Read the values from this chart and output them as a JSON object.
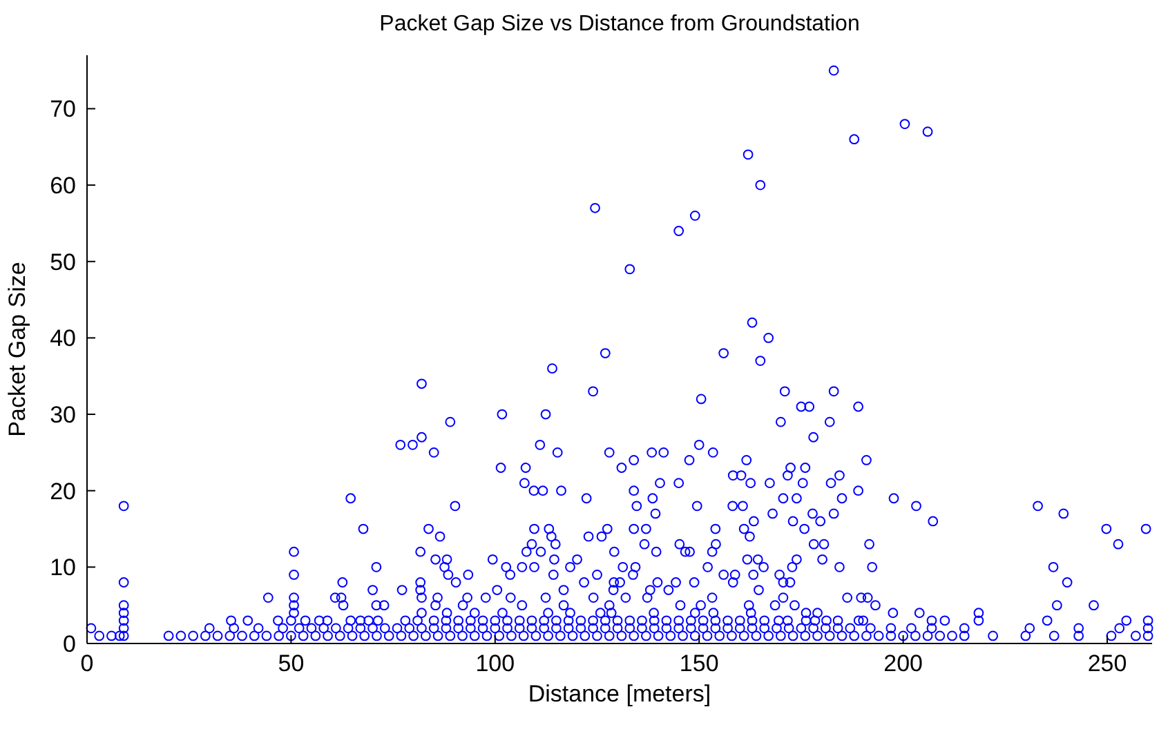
{
  "chart_data": {
    "type": "scatter",
    "title": "Packet Gap Size vs Distance from Groundstation",
    "xlabel": "Distance [meters]",
    "ylabel": "Packet Gap Size",
    "xlim": [
      0,
      261
    ],
    "ylim": [
      0,
      77
    ],
    "xticks": [
      0,
      50,
      100,
      150,
      200,
      250
    ],
    "yticks": [
      0,
      10,
      20,
      30,
      40,
      50,
      60,
      70
    ],
    "marker": "circle",
    "series": [
      {
        "color": "#0000ff",
        "x": [
          183
        ],
        "values": [
          75
        ]
      },
      {
        "color": "#0000ff",
        "x": [
          200.4
        ],
        "values": [
          68
        ]
      },
      {
        "color": "#0000ff",
        "x": [
          206
        ],
        "values": [
          67
        ]
      },
      {
        "color": "#0000ff",
        "x": [
          188
        ],
        "values": [
          66
        ]
      },
      {
        "color": "#0000ff",
        "x": [
          162
        ],
        "values": [
          64
        ]
      },
      {
        "color": "#0000ff",
        "x": [
          165
        ],
        "values": [
          60
        ]
      },
      {
        "color": "#0000ff",
        "x": [
          124.5
        ],
        "values": [
          57
        ]
      },
      {
        "color": "#0000ff",
        "x": [
          149
        ],
        "values": [
          56
        ]
      },
      {
        "color": "#0000ff",
        "x": [
          145
        ],
        "values": [
          54
        ]
      },
      {
        "color": "#0000ff",
        "x": [
          133
        ],
        "values": [
          49
        ]
      },
      {
        "color": "#0000ff",
        "x": [
          163
        ],
        "values": [
          42
        ]
      },
      {
        "color": "#0000ff",
        "x": [
          167
        ],
        "values": [
          40
        ]
      },
      {
        "color": "#0000ff",
        "x": [
          127,
          156
        ],
        "values": [
          38,
          38
        ]
      },
      {
        "color": "#0000ff",
        "x": [
          165
        ],
        "values": [
          37
        ]
      },
      {
        "color": "#0000ff",
        "x": [
          114
        ],
        "values": [
          36
        ]
      },
      {
        "color": "#0000ff",
        "x": [
          82
        ],
        "values": [
          34
        ]
      },
      {
        "color": "#0000ff",
        "x": [
          124,
          171,
          183
        ],
        "values": [
          33,
          33,
          33
        ]
      },
      {
        "color": "#0000ff",
        "x": [
          150.5
        ],
        "values": [
          32
        ]
      },
      {
        "color": "#0000ff",
        "x": [
          175,
          177,
          189
        ],
        "values": [
          31,
          31,
          31
        ]
      },
      {
        "color": "#0000ff",
        "x": [
          101.7,
          112.4
        ],
        "values": [
          30,
          30
        ]
      },
      {
        "color": "#0000ff",
        "x": [
          89,
          170,
          182
        ],
        "values": [
          29,
          29,
          29
        ]
      },
      {
        "color": "#0000ff",
        "x": [
          82,
          178
        ],
        "values": [
          27,
          27
        ]
      },
      {
        "color": "#0000ff",
        "x": [
          76.8,
          79.8,
          111,
          150
        ],
        "values": [
          26,
          26,
          26,
          26
        ]
      },
      {
        "color": "#0000ff",
        "x": [
          85,
          115.3,
          128,
          138.4,
          141.3,
          153.4
        ],
        "values": [
          25,
          25,
          25,
          25,
          25,
          25
        ]
      },
      {
        "color": "#0000ff",
        "x": [
          134,
          147.6,
          161.6,
          191
        ],
        "values": [
          24,
          24,
          24,
          24
        ]
      },
      {
        "color": "#0000ff",
        "x": [
          101.4,
          107.5,
          131,
          172.4,
          176
        ],
        "values": [
          23,
          23,
          23,
          23,
          23
        ]
      },
      {
        "color": "#0000ff",
        "x": [
          158.3,
          160.3,
          171.7,
          184.4
        ],
        "values": [
          22,
          22,
          22,
          22
        ]
      },
      {
        "color": "#0000ff",
        "x": [
          107.2,
          140.4,
          145,
          162.6,
          167.3,
          175.4,
          182.3
        ],
        "values": [
          21,
          21,
          21,
          21,
          21,
          21,
          21
        ]
      },
      {
        "color": "#0000ff",
        "x": [
          109.5,
          111.7,
          116.2,
          134,
          189
        ],
        "values": [
          20,
          20,
          20,
          20,
          20
        ]
      },
      {
        "color": "#0000ff",
        "x": [
          64.6,
          122.4,
          138.6,
          170.6,
          173.9,
          185,
          197.7
        ],
        "values": [
          19,
          19,
          19,
          19,
          19,
          19,
          19
        ]
      },
      {
        "color": "#0000ff",
        "x": [
          9,
          90.2,
          134.7,
          149.5,
          158.2,
          160.7,
          203.2,
          233
        ],
        "values": [
          18,
          18,
          18,
          18,
          18,
          18,
          18,
          18
        ]
      },
      {
        "color": "#0000ff",
        "x": [
          139.3,
          168,
          177.8,
          183,
          239.3
        ],
        "values": [
          17,
          17,
          17,
          17,
          17
        ]
      },
      {
        "color": "#0000ff",
        "x": [
          163.4,
          173,
          179.7,
          207.3
        ],
        "values": [
          16,
          16,
          16,
          16
        ]
      },
      {
        "color": "#0000ff",
        "x": [
          67.7,
          83.7,
          109.6,
          113.2,
          127.5,
          134,
          137,
          154,
          161,
          175.8,
          249.8,
          259.5
        ],
        "values": [
          15,
          15,
          15,
          15,
          15,
          15,
          15,
          15,
          15,
          15,
          15,
          15
        ]
      },
      {
        "color": "#0000ff",
        "x": [
          86.5,
          113.8,
          122.9,
          126.1,
          162.4
        ],
        "values": [
          14,
          14,
          14,
          14,
          14
        ]
      },
      {
        "color": "#0000ff",
        "x": [
          109,
          114.8,
          136.6,
          145.2,
          154.1,
          178.1,
          180.6,
          191.7,
          252.7
        ],
        "values": [
          13,
          13,
          13,
          13,
          13,
          13,
          13,
          13,
          13
        ]
      },
      {
        "color": "#0000ff",
        "x": [
          50.7,
          81.7,
          107.7,
          111.2,
          129.2,
          139.5,
          146.6,
          147.7,
          153.2
        ],
        "values": [
          12,
          12,
          12,
          12,
          12,
          12,
          12,
          12,
          12
        ]
      },
      {
        "color": "#0000ff",
        "x": [
          85.4,
          88.2,
          99.4,
          114.5,
          120.1,
          161.8,
          164.4,
          173.9,
          180.2
        ],
        "values": [
          11,
          11,
          11,
          11,
          11,
          11,
          11,
          11,
          11
        ]
      },
      {
        "color": "#0000ff",
        "x": [
          70.9,
          87.6,
          102.7,
          106.6,
          109.6,
          118.4,
          131.3,
          134.4,
          152.1,
          165.8,
          172.8,
          184.4,
          192.4,
          236.8
        ],
        "values": [
          10,
          10,
          10,
          10,
          10,
          10,
          10,
          10,
          10,
          10,
          10,
          10,
          10,
          10
        ]
      },
      {
        "color": "#0000ff",
        "x": [
          50.7,
          88.5,
          93.4,
          103.7,
          114.3,
          125,
          133.8,
          156,
          158.8,
          163.3,
          169.7
        ],
        "values": [
          9,
          9,
          9,
          9,
          9,
          9,
          9,
          9,
          9,
          9,
          9
        ]
      },
      {
        "color": "#0000ff",
        "x": [
          9,
          62.6,
          81.7,
          90.4,
          121.8,
          129.1,
          130.6,
          139.8,
          144.3,
          148.8,
          158.3,
          170.6,
          172.3,
          240.2
        ],
        "values": [
          8,
          8,
          8,
          8,
          8,
          8,
          8,
          8,
          8,
          8,
          8,
          8,
          8,
          8
        ]
      },
      {
        "color": "#0000ff",
        "x": [
          70,
          77.2,
          81.7,
          100.5,
          116.8,
          129,
          138,
          142.5,
          164.6
        ],
        "values": [
          7,
          7,
          7,
          7,
          7,
          7,
          7,
          7,
          7
        ]
      },
      {
        "color": "#0000ff",
        "x": [
          44.4,
          50.7,
          60.8,
          62.3,
          82,
          85.9,
          93.2,
          97.7,
          103.8,
          112.4,
          124.1,
          132,
          137.3,
          153.2,
          170.6,
          186.3,
          189.7,
          191.3
        ],
        "values": [
          6,
          6,
          6,
          6,
          6,
          6,
          6,
          6,
          6,
          6,
          6,
          6,
          6,
          6,
          6,
          6,
          6,
          6
        ]
      },
      {
        "color": "#0000ff",
        "x": [
          9,
          50.7,
          62.8,
          70.9,
          72.8,
          85.4,
          92.1,
          106.6,
          116.8,
          128,
          145.4,
          150.4,
          162.2,
          168.6,
          173.4,
          193.2,
          237.7,
          246.7
        ],
        "values": [
          5,
          5,
          5,
          5,
          5,
          5,
          5,
          5,
          5,
          5,
          5,
          5,
          5,
          5,
          5,
          5,
          5,
          5
        ]
      },
      {
        "color": "#0000ff",
        "x": [
          9,
          50.7,
          82,
          88.2,
          95,
          101.8,
          113,
          118.4,
          125.8,
          128.5,
          138.9,
          149,
          153.5,
          162.7,
          176.2,
          179,
          197.5,
          204,
          218.5
        ],
        "values": [
          4,
          4,
          4,
          4,
          4,
          4,
          4,
          4,
          4,
          4,
          4,
          4,
          4,
          4,
          4,
          4,
          4,
          4,
          4
        ]
      },
      {
        "color": "#0000ff",
        "x": [
          9,
          35.3,
          39.4,
          46.8,
          50,
          53.5,
          56.9,
          58.9,
          64.6,
          67,
          69,
          71.3,
          78,
          81,
          85,
          88,
          91,
          94,
          97,
          100,
          103,
          106,
          109,
          112,
          115,
          118,
          121,
          124,
          127,
          130,
          133,
          136,
          139,
          142,
          145,
          148,
          151,
          154,
          157,
          160,
          163,
          166,
          169.5,
          171.7,
          176.2,
          178.4,
          181.2,
          184,
          189.1,
          190.2,
          207,
          210.2,
          218.5,
          235.3,
          254.7,
          260
        ],
        "values": [
          3,
          3,
          3,
          3,
          3,
          3,
          3,
          3,
          3,
          3,
          3,
          3,
          3,
          3,
          3,
          3,
          3,
          3,
          3,
          3,
          3,
          3,
          3,
          3,
          3,
          3,
          3,
          3,
          3,
          3,
          3,
          3,
          3,
          3,
          3,
          3,
          3,
          3,
          3,
          3,
          3,
          3,
          3,
          3,
          3,
          3,
          3,
          3,
          3,
          3,
          3,
          3,
          3,
          3,
          3,
          3
        ]
      },
      {
        "color": "#0000ff",
        "x": [
          1,
          9,
          30,
          36,
          42,
          48,
          52,
          55,
          58,
          61,
          64,
          67,
          70,
          73,
          76,
          79,
          82,
          85,
          88,
          91,
          94,
          97,
          100,
          103,
          106,
          109,
          112,
          115,
          118,
          121,
          124,
          127,
          130,
          133,
          136,
          139,
          142,
          145,
          148,
          151,
          154,
          157,
          160,
          163,
          166,
          169,
          172,
          175,
          178,
          181,
          184,
          187,
          192,
          197,
          202,
          207,
          215,
          231,
          243,
          253,
          260
        ],
        "values": [
          2,
          2,
          2,
          2,
          2,
          2,
          2,
          2,
          2,
          2,
          2,
          2,
          2,
          2,
          2,
          2,
          2,
          2,
          2,
          2,
          2,
          2,
          2,
          2,
          2,
          2,
          2,
          2,
          2,
          2,
          2,
          2,
          2,
          2,
          2,
          2,
          2,
          2,
          2,
          2,
          2,
          2,
          2,
          2,
          2,
          2,
          2,
          2,
          2,
          2,
          2,
          2,
          2,
          2,
          2,
          2,
          2,
          2,
          2,
          2,
          2
        ]
      },
      {
        "color": "#0000ff",
        "x": [
          3,
          6,
          8,
          9,
          20,
          23,
          26,
          29,
          32,
          35,
          38,
          41,
          44,
          47,
          50,
          53,
          56,
          59,
          62,
          65,
          68,
          71,
          74,
          77,
          80,
          83,
          86,
          89,
          92,
          95,
          98,
          101,
          104,
          107,
          110,
          113,
          116,
          119,
          122,
          125,
          128,
          131,
          134,
          137,
          140,
          143,
          146,
          149,
          152,
          155,
          158,
          161,
          164,
          167,
          170,
          173,
          176,
          179,
          182,
          185,
          188,
          191,
          194,
          197,
          200,
          203,
          206,
          209,
          212,
          215,
          222,
          230,
          237,
          243,
          251,
          257,
          260
        ],
        "values": [
          1,
          1,
          1,
          1,
          1,
          1,
          1,
          1,
          1,
          1,
          1,
          1,
          1,
          1,
          1,
          1,
          1,
          1,
          1,
          1,
          1,
          1,
          1,
          1,
          1,
          1,
          1,
          1,
          1,
          1,
          1,
          1,
          1,
          1,
          1,
          1,
          1,
          1,
          1,
          1,
          1,
          1,
          1,
          1,
          1,
          1,
          1,
          1,
          1,
          1,
          1,
          1,
          1,
          1,
          1,
          1,
          1,
          1,
          1,
          1,
          1,
          1,
          1,
          1,
          1,
          1,
          1,
          1,
          1,
          1,
          1,
          1,
          1,
          1,
          1,
          1,
          1
        ]
      }
    ]
  }
}
